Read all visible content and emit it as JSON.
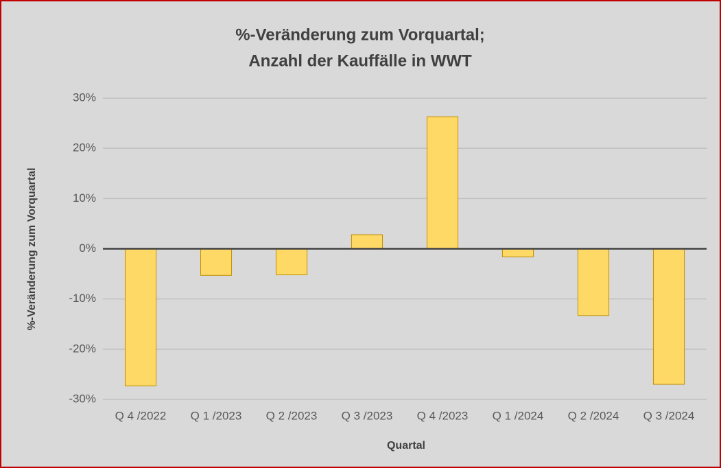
{
  "chart_data": {
    "type": "bar",
    "title": [
      "%-Veränderung zum Vorquartal;",
      "Anzahl der Kauffälle in WWT"
    ],
    "x_label": "Quartal",
    "y_label": "%-Veränderung zum Vorquartal",
    "categories": [
      "Q 4 /2022",
      "Q 1 /2023",
      "Q 2 /2023",
      "Q 3 /2023",
      "Q 4 /2023",
      "Q 1 /2024",
      "Q 2 /2024",
      "Q 3 /2024"
    ],
    "values": [
      -27.3,
      -5.3,
      -5.2,
      2.8,
      26.3,
      -1.6,
      -13.3,
      -27.0
    ],
    "color": "#ffd966",
    "ylim": [
      -30,
      30
    ],
    "yticks": [
      {
        "value": -30,
        "label": "-30%"
      },
      {
        "value": -20,
        "label": "-20%"
      },
      {
        "value": -10,
        "label": "-10%"
      },
      {
        "value": 0,
        "label": "0%"
      },
      {
        "value": 10,
        "label": "10%"
      },
      {
        "value": 20,
        "label": "20%"
      },
      {
        "value": 30,
        "label": "30%"
      }
    ],
    "grid": true
  }
}
